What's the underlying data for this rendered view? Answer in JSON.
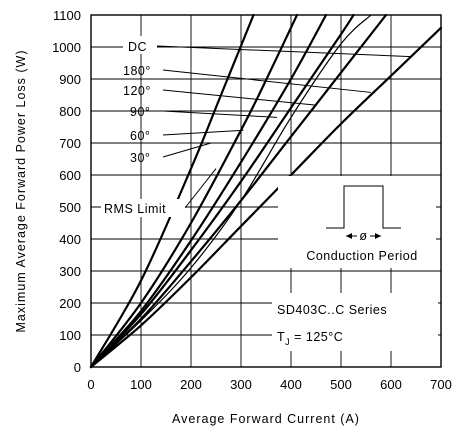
{
  "chart_data": {
    "type": "line",
    "xlabel": "Average Forward Current (A)",
    "ylabel": "Maximum Average Forward Power Loss (W)",
    "xlim": [
      0,
      700
    ],
    "ylim": [
      0,
      1100
    ],
    "x_ticks": [
      0,
      100,
      200,
      300,
      400,
      500,
      600,
      700
    ],
    "y_ticks": [
      0,
      100,
      200,
      300,
      400,
      500,
      600,
      700,
      800,
      900,
      1000,
      1100
    ],
    "x_tick_labels": [
      "0",
      "100",
      "200",
      "300",
      "400",
      "500",
      "600",
      "700"
    ],
    "y_tick_labels": [
      "0",
      "100",
      "200",
      "300",
      "400",
      "500",
      "600",
      "700",
      "800",
      "900",
      "1000",
      "1100"
    ],
    "grid": true,
    "series": [
      {
        "name": "DC",
        "points": [
          [
            0,
            0
          ],
          [
            100,
            130
          ],
          [
            200,
            280
          ],
          [
            300,
            440
          ],
          [
            400,
            600
          ],
          [
            500,
            760
          ],
          [
            600,
            910
          ],
          [
            700,
            1060
          ]
        ]
      },
      {
        "name": "180°",
        "points": [
          [
            0,
            0
          ],
          [
            100,
            150
          ],
          [
            200,
            330
          ],
          [
            300,
            520
          ],
          [
            400,
            720
          ],
          [
            500,
            920
          ],
          [
            590,
            1100
          ]
        ]
      },
      {
        "name": "120°",
        "points": [
          [
            0,
            0
          ],
          [
            100,
            165
          ],
          [
            200,
            365
          ],
          [
            300,
            580
          ],
          [
            400,
            810
          ],
          [
            500,
            1040
          ],
          [
            525,
            1100
          ]
        ]
      },
      {
        "name": "90°",
        "points": [
          [
            0,
            0
          ],
          [
            100,
            175
          ],
          [
            200,
            395
          ],
          [
            300,
            640
          ],
          [
            400,
            900
          ],
          [
            470,
            1100
          ]
        ]
      },
      {
        "name": "60°",
        "points": [
          [
            0,
            0
          ],
          [
            100,
            200
          ],
          [
            200,
            450
          ],
          [
            300,
            740
          ],
          [
            345,
            880
          ],
          [
            412,
            1100
          ]
        ]
      },
      {
        "name": "30°",
        "points": [
          [
            0,
            0
          ],
          [
            100,
            270
          ],
          [
            200,
            620
          ],
          [
            260,
            850
          ],
          [
            325,
            1100
          ]
        ]
      }
    ],
    "rms_limit": {
      "points": [
        [
          0,
          0
        ],
        [
          100,
          145
        ],
        [
          200,
          310
        ],
        [
          300,
          520
        ],
        [
          400,
          780
        ],
        [
          500,
          1010
        ],
        [
          560,
          1100
        ]
      ]
    }
  },
  "labels": {
    "dc": "DC",
    "deg180": "180°",
    "deg120": "120°",
    "deg90": "90°",
    "deg60": "60°",
    "deg30": "30°",
    "rms": "RMS Limit",
    "conduction": "Conduction Period",
    "phi": "ø",
    "series_name": "SD403C..C Series",
    "tj_symbol": "T",
    "tj_sub": "J",
    "tj_value": " = 125°C"
  }
}
